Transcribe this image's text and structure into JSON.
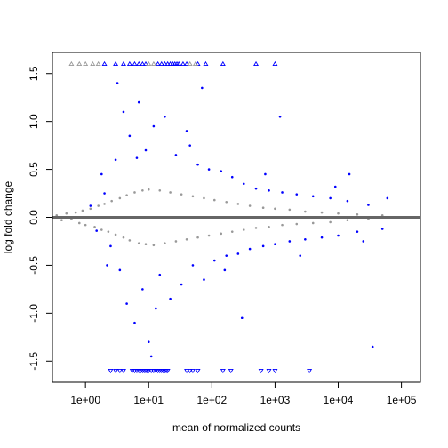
{
  "chart_data": {
    "type": "scatter",
    "title": "",
    "xlabel": "mean of normalized counts",
    "ylabel": "log fold change",
    "x_scale": "log10",
    "xlim": [
      0.3,
      200000
    ],
    "ylim": [
      -1.72,
      1.72
    ],
    "x_ticks": [
      {
        "value": 1,
        "label": "1e+00"
      },
      {
        "value": 10,
        "label": "1e+01"
      },
      {
        "value": 100,
        "label": "1e+02"
      },
      {
        "value": 1000,
        "label": "1e+03"
      },
      {
        "value": 10000,
        "label": "1e+04"
      },
      {
        "value": 100000,
        "label": "1e+05"
      }
    ],
    "y_ticks": [
      {
        "value": -1.5,
        "label": "-1.5"
      },
      {
        "value": -1.0,
        "label": "-1.0"
      },
      {
        "value": -0.5,
        "label": "-0.5"
      },
      {
        "value": 0.0,
        "label": "0.0"
      },
      {
        "value": 0.5,
        "label": "0.5"
      },
      {
        "value": 1.0,
        "label": "1.0"
      },
      {
        "value": 1.5,
        "label": "1.5"
      }
    ],
    "reference_line": {
      "y": 0,
      "color": "#666666"
    },
    "grid": false,
    "legend": "none",
    "clip_value": 1.6,
    "colors": {
      "significant": "#0000ff",
      "not_significant": "#999999"
    },
    "series": [
      {
        "significant": false,
        "points": [
          [
            0.35,
            0.02
          ],
          [
            0.42,
            -0.03
          ],
          [
            0.5,
            0.04
          ],
          [
            0.6,
            -0.02
          ],
          [
            0.7,
            0.05
          ],
          [
            0.8,
            -0.06
          ],
          [
            0.9,
            0.07
          ],
          [
            1.0,
            -0.08
          ],
          [
            1.2,
            0.09
          ],
          [
            1.4,
            -0.1
          ],
          [
            1.6,
            0.12
          ],
          [
            1.8,
            -0.13
          ],
          [
            2.0,
            0.14
          ],
          [
            2.3,
            -0.15
          ],
          [
            2.6,
            0.17
          ],
          [
            3.0,
            -0.18
          ],
          [
            3.5,
            0.2
          ],
          [
            4.0,
            -0.21
          ],
          [
            4.5,
            0.23
          ],
          [
            5.0,
            -0.24
          ],
          [
            6.0,
            0.26
          ],
          [
            7.0,
            -0.27
          ],
          [
            8.0,
            0.28
          ],
          [
            9.0,
            -0.28
          ],
          [
            10,
            0.29
          ],
          [
            12,
            -0.29
          ],
          [
            15,
            0.28
          ],
          [
            18,
            -0.27
          ],
          [
            22,
            0.26
          ],
          [
            27,
            -0.25
          ],
          [
            33,
            0.24
          ],
          [
            40,
            -0.23
          ],
          [
            50,
            0.22
          ],
          [
            60,
            -0.21
          ],
          [
            75,
            0.2
          ],
          [
            90,
            -0.19
          ],
          [
            110,
            0.18
          ],
          [
            140,
            -0.17
          ],
          [
            170,
            0.16
          ],
          [
            210,
            -0.15
          ],
          [
            260,
            0.14
          ],
          [
            320,
            -0.13
          ],
          [
            400,
            0.12
          ],
          [
            500,
            -0.11
          ],
          [
            650,
            0.1
          ],
          [
            800,
            -0.1
          ],
          [
            1000,
            0.09
          ],
          [
            1300,
            -0.08
          ],
          [
            1700,
            0.08
          ],
          [
            2200,
            -0.07
          ],
          [
            3000,
            0.06
          ],
          [
            4000,
            -0.06
          ],
          [
            5500,
            0.05
          ],
          [
            7500,
            -0.05
          ],
          [
            10000,
            0.04
          ],
          [
            14000,
            -0.03
          ],
          [
            20000,
            0.03
          ],
          [
            30000,
            -0.02
          ],
          [
            50000,
            0.02
          ],
          [
            100000,
            0.0
          ]
        ]
      },
      {
        "significant": true,
        "points": [
          [
            1.2,
            0.12
          ],
          [
            1.5,
            -0.14
          ],
          [
            2.0,
            0.25
          ],
          [
            2.5,
            -0.3
          ],
          [
            3.0,
            0.6
          ],
          [
            3.5,
            -0.55
          ],
          [
            4.0,
            1.1
          ],
          [
            4.5,
            -0.9
          ],
          [
            5.0,
            0.85
          ],
          [
            6.0,
            -1.1
          ],
          [
            7.0,
            1.2
          ],
          [
            8.0,
            -0.75
          ],
          [
            9.0,
            0.7
          ],
          [
            10,
            -1.3
          ],
          [
            12,
            0.95
          ],
          [
            15,
            -0.6
          ],
          [
            18,
            1.05
          ],
          [
            22,
            -0.85
          ],
          [
            27,
            0.65
          ],
          [
            33,
            -0.7
          ],
          [
            40,
            0.9
          ],
          [
            50,
            -0.5
          ],
          [
            60,
            0.55
          ],
          [
            75,
            -0.65
          ],
          [
            90,
            0.5
          ],
          [
            110,
            -0.45
          ],
          [
            140,
            0.48
          ],
          [
            170,
            -0.4
          ],
          [
            210,
            0.42
          ],
          [
            260,
            -0.38
          ],
          [
            320,
            0.35
          ],
          [
            400,
            -0.33
          ],
          [
            500,
            0.3
          ],
          [
            650,
            -0.3
          ],
          [
            800,
            0.28
          ],
          [
            1000,
            -0.28
          ],
          [
            1300,
            0.26
          ],
          [
            1700,
            -0.25
          ],
          [
            2200,
            0.24
          ],
          [
            3000,
            -0.23
          ],
          [
            4000,
            0.22
          ],
          [
            5500,
            -0.21
          ],
          [
            7500,
            0.2
          ],
          [
            10000,
            -0.19
          ],
          [
            14000,
            0.17
          ],
          [
            20000,
            -0.15
          ],
          [
            30000,
            0.13
          ],
          [
            50000,
            -0.12
          ],
          [
            1.8,
            0.45
          ],
          [
            2.2,
            -0.5
          ],
          [
            6.5,
            0.62
          ],
          [
            13,
            -0.95
          ],
          [
            45,
            0.75
          ],
          [
            160,
            -0.55
          ],
          [
            700,
            0.45
          ],
          [
            2500,
            -0.4
          ],
          [
            9000,
            0.32
          ],
          [
            25000,
            -0.25
          ],
          [
            60000,
            0.2
          ],
          [
            35000,
            -1.35
          ],
          [
            15000,
            0.45
          ],
          [
            1200,
            1.05
          ],
          [
            300,
            -1.05
          ],
          [
            70,
            1.35
          ],
          [
            11,
            -1.45
          ],
          [
            3.2,
            1.4
          ]
        ]
      },
      {
        "significant": true,
        "clipped": "up",
        "points": [
          [
            2.0,
            1.6
          ],
          [
            3.0,
            1.6
          ],
          [
            4.0,
            1.6
          ],
          [
            5.0,
            1.6
          ],
          [
            6.0,
            1.6
          ],
          [
            7.0,
            1.6
          ],
          [
            8.0,
            1.6
          ],
          [
            9.0,
            1.6
          ],
          [
            14,
            1.6
          ],
          [
            16,
            1.6
          ],
          [
            18,
            1.6
          ],
          [
            20,
            1.6
          ],
          [
            22,
            1.6
          ],
          [
            24,
            1.6
          ],
          [
            26,
            1.6
          ],
          [
            28,
            1.6
          ],
          [
            30,
            1.6
          ],
          [
            35,
            1.6
          ],
          [
            40,
            1.6
          ],
          [
            60,
            1.6
          ],
          [
            80,
            1.6
          ],
          [
            150,
            1.6
          ],
          [
            500,
            1.6
          ],
          [
            1000,
            1.6
          ]
        ]
      },
      {
        "significant": false,
        "clipped": "up",
        "points": [
          [
            0.6,
            1.6
          ],
          [
            0.8,
            1.6
          ],
          [
            1.0,
            1.6
          ],
          [
            1.3,
            1.6
          ],
          [
            1.6,
            1.6
          ],
          [
            10,
            1.6
          ],
          [
            12,
            1.6
          ],
          [
            45,
            1.6
          ],
          [
            55,
            1.6
          ]
        ]
      },
      {
        "significant": true,
        "clipped": "down",
        "points": [
          [
            2.5,
            -1.6
          ],
          [
            3.0,
            -1.6
          ],
          [
            3.5,
            -1.6
          ],
          [
            4.0,
            -1.6
          ],
          [
            5.5,
            -1.6
          ],
          [
            6.0,
            -1.6
          ],
          [
            6.5,
            -1.6
          ],
          [
            7.0,
            -1.6
          ],
          [
            7.5,
            -1.6
          ],
          [
            8.0,
            -1.6
          ],
          [
            8.5,
            -1.6
          ],
          [
            9.0,
            -1.6
          ],
          [
            9.5,
            -1.6
          ],
          [
            10,
            -1.6
          ],
          [
            11,
            -1.6
          ],
          [
            12,
            -1.6
          ],
          [
            13,
            -1.6
          ],
          [
            14,
            -1.6
          ],
          [
            15,
            -1.6
          ],
          [
            16,
            -1.6
          ],
          [
            17,
            -1.6
          ],
          [
            18,
            -1.6
          ],
          [
            19,
            -1.6
          ],
          [
            20,
            -1.6
          ],
          [
            40,
            -1.6
          ],
          [
            45,
            -1.6
          ],
          [
            50,
            -1.6
          ],
          [
            60,
            -1.6
          ],
          [
            150,
            -1.6
          ],
          [
            200,
            -1.6
          ],
          [
            600,
            -1.6
          ],
          [
            800,
            -1.6
          ],
          [
            1000,
            -1.6
          ],
          [
            3500,
            -1.6
          ]
        ]
      }
    ]
  }
}
